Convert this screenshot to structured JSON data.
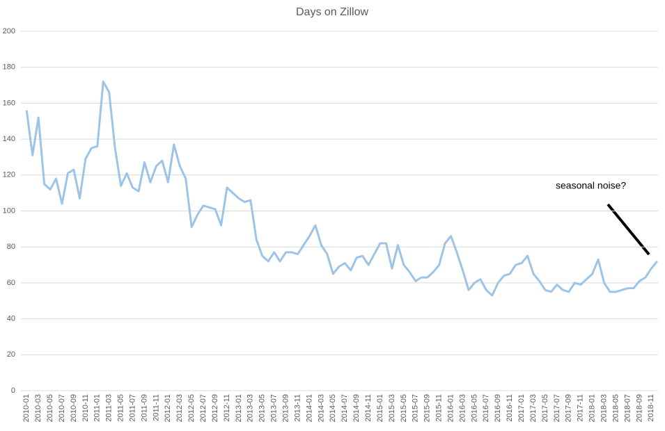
{
  "chart_data": {
    "type": "line",
    "title": "Days on Zillow",
    "annotation": "seasonal noise?",
    "categories": [
      "2010-01",
      null,
      "2010-03",
      null,
      "2010-05",
      null,
      "2010-07",
      null,
      "2010-09",
      null,
      "2010-11",
      null,
      "2011-01",
      null,
      "2011-03",
      null,
      "2011-05",
      null,
      "2011-07",
      null,
      "2011-09",
      null,
      "2011-11",
      null,
      "2012-01",
      null,
      "2012-03",
      null,
      "2012-05",
      null,
      "2012-07",
      null,
      "2012-09",
      null,
      "2012-11",
      null,
      "2013-01",
      null,
      "2013-03",
      null,
      "2013-05",
      null,
      "2013-07",
      null,
      "2013-09",
      null,
      "2013-11",
      null,
      "2014-01",
      null,
      "2014-03",
      null,
      "2014-05",
      null,
      "2014-07",
      null,
      "2014-09",
      null,
      "2014-11",
      null,
      "2015-01",
      null,
      "2015-03",
      null,
      "2015-05",
      null,
      "2015-07",
      null,
      "2015-09",
      null,
      "2015-11",
      null,
      "2016-01",
      null,
      "2016-03",
      null,
      "2016-05",
      null,
      "2016-07",
      null,
      "2016-09",
      null,
      "2016-11",
      null,
      "2017-01",
      null,
      "2017-03",
      null,
      "2017-05",
      null,
      "2017-07",
      null,
      "2017-09",
      null,
      "2017-11",
      null,
      "2018-01",
      null,
      "2018-03",
      null,
      "2018-05",
      null,
      "2018-07",
      null,
      "2018-09",
      null,
      "2018-11",
      null
    ],
    "values": [
      156,
      131,
      152,
      115,
      112,
      118,
      104,
      121,
      123,
      107,
      129,
      135,
      136,
      172,
      166,
      135,
      114,
      121,
      113,
      111,
      127,
      116,
      125,
      128,
      116,
      137,
      125,
      118,
      91,
      98,
      103,
      102,
      101,
      92,
      113,
      110,
      107,
      105,
      106,
      84,
      75,
      72,
      77,
      72,
      77,
      77,
      76,
      81,
      86,
      92,
      81,
      76,
      65,
      69,
      71,
      67,
      74,
      75,
      70,
      76,
      82,
      82,
      68,
      81,
      70,
      66,
      61,
      63,
      63,
      66,
      70,
      82,
      86,
      77,
      67,
      56,
      60,
      62,
      56,
      53,
      60,
      64,
      65,
      70,
      71,
      75,
      65,
      61,
      56,
      55,
      59,
      56,
      55,
      60,
      59,
      62,
      65,
      73,
      60,
      55,
      55,
      56,
      57,
      57,
      61,
      63,
      68,
      72
    ],
    "color": "#9dc3e6",
    "ylim": [
      0,
      200
    ],
    "yticks": [
      0,
      20,
      40,
      60,
      80,
      100,
      120,
      140,
      160,
      180,
      200
    ],
    "grid": true
  }
}
